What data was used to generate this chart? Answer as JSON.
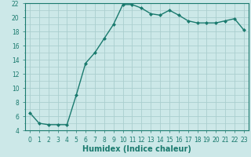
{
  "xlabel": "Humidex (Indice chaleur)",
  "x": [
    0,
    1,
    2,
    3,
    4,
    5,
    6,
    7,
    8,
    9,
    10,
    11,
    12,
    13,
    14,
    15,
    16,
    17,
    18,
    19,
    20,
    21,
    22,
    23
  ],
  "y": [
    6.5,
    5.0,
    4.8,
    4.8,
    4.8,
    9.0,
    13.5,
    15.0,
    17.0,
    19.0,
    21.8,
    21.8,
    21.3,
    20.5,
    20.3,
    21.0,
    20.3,
    19.5,
    19.2,
    19.2,
    19.2,
    19.5,
    19.8,
    18.2
  ],
  "line_color": "#1a7a6e",
  "marker": "D",
  "marker_size": 2,
  "bg_color": "#cce8e8",
  "grid_color": "#aacece",
  "ylim": [
    4,
    22
  ],
  "yticks": [
    4,
    6,
    8,
    10,
    12,
    14,
    16,
    18,
    20,
    22
  ],
  "xticks": [
    0,
    1,
    2,
    3,
    4,
    5,
    6,
    7,
    8,
    9,
    10,
    11,
    12,
    13,
    14,
    15,
    16,
    17,
    18,
    19,
    20,
    21,
    22,
    23
  ],
  "tick_label_size": 5.5,
  "xlabel_fontsize": 7,
  "line_width": 1.0
}
